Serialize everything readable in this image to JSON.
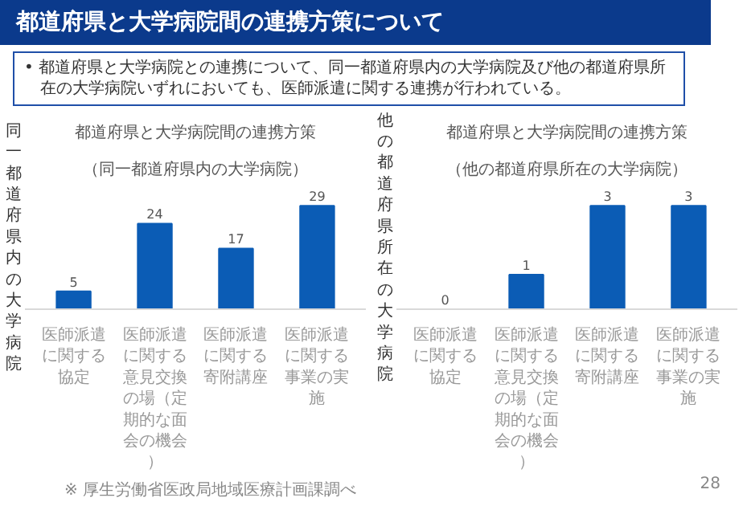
{
  "chart_data": [
    {
      "type": "other",
      "title": "都道府県と大学病院間の連携方策について",
      "annotations": [
        "• 都道府県と大学病院との連携について、同一都道府県内の大学病院及び他の都道府県所在の大学病院いずれにおいても、医師派遣に関する連携が行われている。"
      ]
    },
    {
      "type": "bar",
      "title": "都道府県と大学病院間の連携方策",
      "subtitle": "（同一都道府県内の大学病院）",
      "ylabel": "同一都道府県内の大学病院",
      "categories": [
        "医師派遣に関する協定",
        "医師派遣に関する意見交換の場（定期的な面会の機会）",
        "医師派遣に関する寄附講座",
        "医師派遣に関する事業の実施"
      ],
      "values": [
        5,
        24,
        17,
        29
      ],
      "color": "#0b5cb5",
      "data_labels": true,
      "grid": false
    },
    {
      "type": "bar",
      "title": "都道府県と大学病院間の連携方策",
      "subtitle": "（他の都道府県所在の大学病院）",
      "ylabel": "他の都道府県所在の大学病院",
      "categories": [
        "医師派遣に関する協定",
        "医師派遣に関する意見交換の場（定期的な面会の機会）",
        "医師派遣に関する寄附講座",
        "医師派遣に関する事業の実施"
      ],
      "values": [
        0,
        1,
        3,
        3
      ],
      "color": "#0b5cb5",
      "data_labels": true,
      "grid": false
    },
    {
      "type": "other",
      "annotations": [
        "※ 厚生労働省医政局地域医療計画課調べ",
        "28"
      ]
    }
  ]
}
